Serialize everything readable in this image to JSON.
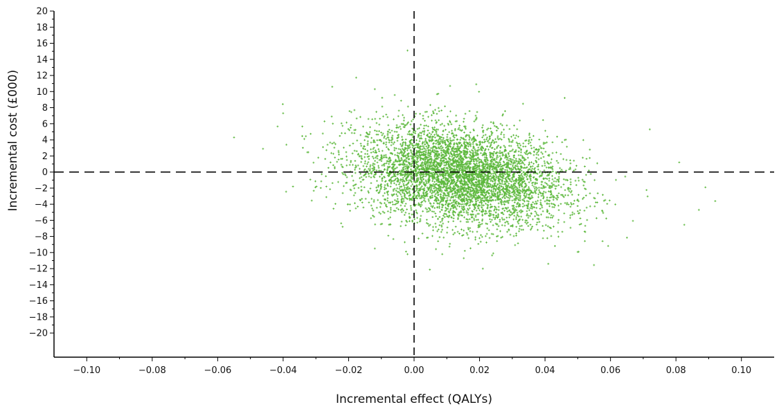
{
  "chart_data": {
    "type": "scatter",
    "title": "",
    "xlabel": "Incremental effect (QALYs)",
    "ylabel": "Incremental cost (£000)",
    "xlim": [
      -0.11,
      0.11
    ],
    "ylim": [
      -23,
      20
    ],
    "x_ticks": [
      -0.1,
      -0.08,
      -0.06,
      -0.04,
      -0.02,
      0.0,
      0.02,
      0.04,
      0.06,
      0.08,
      0.1
    ],
    "x_tick_labels": [
      "−0.10",
      "−0.08",
      "−0.06",
      "−0.04",
      "−0.02",
      "0.00",
      "0.02",
      "0.04",
      "0.06",
      "0.08",
      "0.10"
    ],
    "y_ticks": [
      20,
      18,
      16,
      14,
      12,
      10,
      8,
      6,
      4,
      2,
      0,
      -2,
      -4,
      -6,
      -8,
      -10,
      -12,
      -14,
      -16,
      -18,
      -20
    ],
    "y_tick_labels": [
      "20",
      "18",
      "16",
      "14",
      "12",
      "10",
      "8",
      "6",
      "4",
      "2",
      "0",
      "−2",
      "−4",
      "−6",
      "−8",
      "−10",
      "−12",
      "−14",
      "−16",
      "−18",
      "−20"
    ],
    "reference_lines": {
      "x": 0,
      "y": 0,
      "style": "dashed"
    },
    "series": [
      {
        "point_color": "#5cb83c",
        "cloud_summary": {
          "approx_point_count": 5000,
          "mean_x": 0.014,
          "mean_y": -0.5,
          "sd_x": 0.016,
          "sd_y": 3.1,
          "correlation": -0.25
        },
        "points": [
          {
            "x": -0.055,
            "y": 4.3
          },
          {
            "x": -0.04,
            "y": 7.3
          },
          {
            "x": -0.039,
            "y": 3.4
          },
          {
            "x": -0.037,
            "y": -1.8
          },
          {
            "x": -0.025,
            "y": 10.6
          },
          {
            "x": -0.012,
            "y": 10.3
          },
          {
            "x": -0.002,
            "y": 15.1
          },
          {
            "x": 0.011,
            "y": 10.7
          },
          {
            "x": 0.019,
            "y": 10.9
          },
          {
            "x": 0.046,
            "y": 9.2
          },
          {
            "x": 0.072,
            "y": 5.3
          },
          {
            "x": 0.081,
            "y": 1.2
          },
          {
            "x": 0.089,
            "y": -1.9
          },
          {
            "x": 0.092,
            "y": -3.6
          },
          {
            "x": 0.087,
            "y": -4.7
          },
          {
            "x": 0.021,
            "y": -12.0
          },
          {
            "x": 0.041,
            "y": -11.4
          },
          {
            "x": -0.012,
            "y": -9.5
          },
          {
            "x": -0.002,
            "y": -10.2
          }
        ]
      }
    ]
  }
}
